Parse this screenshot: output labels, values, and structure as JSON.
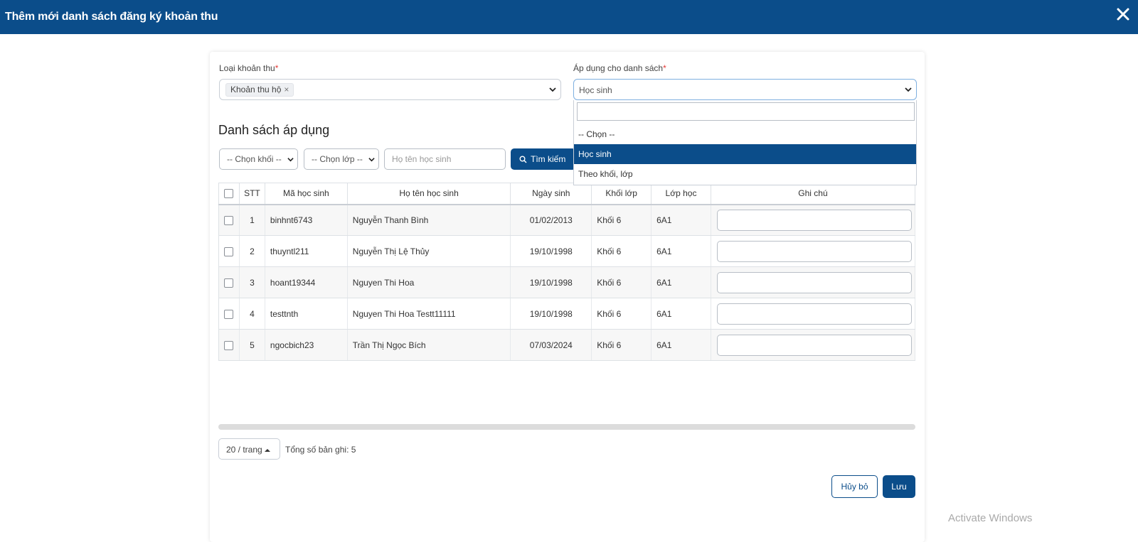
{
  "dialog": {
    "title": "Thêm mới danh sách đăng ký khoản thu",
    "close_icon": "close-icon"
  },
  "form": {
    "fee_type": {
      "label": "Loại khoản thu",
      "required_mark": "*",
      "selected_tag": "Khoản thu hộ",
      "remove_glyph": "×"
    },
    "apply_to": {
      "label": "Áp dụng cho danh sách",
      "required_mark": "*",
      "value": "Học sinh",
      "dropdown_open": true,
      "options": [
        "-- Chọn --",
        "Học sinh",
        "Theo khối, lớp"
      ],
      "selected_option": "Học sinh"
    }
  },
  "list": {
    "title": "Danh sách áp dụng",
    "filters": {
      "grade_placeholder": "-- Chọn khối --",
      "class_placeholder": "-- Chọn lớp --",
      "name_placeholder": "Họ tên học sinh",
      "search_button": "Tìm kiếm"
    },
    "columns": [
      "STT",
      "Mã học sinh",
      "Họ tên học sinh",
      "Ngày sinh",
      "Khối lớp",
      "Lớp học",
      "Ghi chú"
    ],
    "rows": [
      {
        "stt": "1",
        "code": "binhnt6743",
        "name": "Nguyễn Thanh Bình",
        "dob": "01/02/2013",
        "grade": "Khối 6",
        "class": "6A1",
        "note": ""
      },
      {
        "stt": "2",
        "code": "thuyntl211",
        "name": "Nguyễn Thị Lệ Thủy",
        "dob": "19/10/1998",
        "grade": "Khối 6",
        "class": "6A1",
        "note": ""
      },
      {
        "stt": "3",
        "code": "hoant19344",
        "name": "Nguyen Thi Hoa",
        "dob": "19/10/1998",
        "grade": "Khối 6",
        "class": "6A1",
        "note": ""
      },
      {
        "stt": "4",
        "code": "testtnth",
        "name": "Nguyen Thi Hoa Testt11111",
        "dob": "19/10/1998",
        "grade": "Khối 6",
        "class": "6A1",
        "note": ""
      },
      {
        "stt": "5",
        "code": "ngocbich23",
        "name": "Trần Thị Ngọc Bích",
        "dob": "07/03/2024",
        "grade": "Khối 6",
        "class": "6A1",
        "note": ""
      }
    ]
  },
  "pagination": {
    "page_size": "20 / trang",
    "total": "Tổng số bản ghi: 5"
  },
  "actions": {
    "cancel": "Hủy bỏ",
    "save": "Lưu"
  },
  "watermark": "Activate Windows",
  "colors": {
    "primary": "#0b4d8a",
    "required": "#e53935"
  }
}
